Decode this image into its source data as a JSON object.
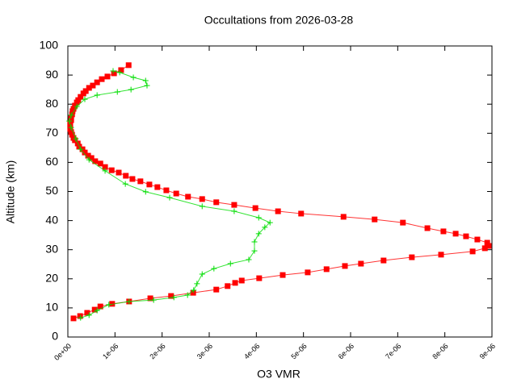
{
  "chart_data": {
    "type": "line",
    "title": "Occultations from 2026-03-28",
    "x_label": "O3 VMR",
    "y_label": "Altitude (km)",
    "xlim": [
      0,
      9e-06
    ],
    "ylim": [
      0,
      100
    ],
    "xticks": [
      {
        "value": 0,
        "label": "0e+00"
      },
      {
        "value": 1e-06,
        "label": "1e-06"
      },
      {
        "value": 2e-06,
        "label": "2e-06"
      },
      {
        "value": 3e-06,
        "label": "3e-06"
      },
      {
        "value": 4e-06,
        "label": "4e-06"
      },
      {
        "value": 5e-06,
        "label": "5e-06"
      },
      {
        "value": 6e-06,
        "label": "6e-06"
      },
      {
        "value": 7e-06,
        "label": "7e-06"
      },
      {
        "value": 8e-06,
        "label": "8e-06"
      },
      {
        "value": 9e-06,
        "label": "9e-06"
      }
    ],
    "yticks": [
      0,
      10,
      20,
      30,
      40,
      50,
      60,
      70,
      80,
      90,
      100
    ],
    "grid": false,
    "series": [
      {
        "color": "#ff0000",
        "marker": "square",
        "x": [
          1.2e-07,
          2.6e-07,
          4.1e-07,
          5.7e-07,
          6.9e-07,
          9.4e-07,
          1.3e-06,
          1.75e-06,
          2.19e-06,
          2.66e-06,
          3.15e-06,
          3.39e-06,
          3.55e-06,
          3.69e-06,
          4.06e-06,
          4.56e-06,
          5.09e-06,
          5.49e-06,
          5.88e-06,
          6.22e-06,
          6.7e-06,
          7.3e-06,
          7.92e-06,
          8.59e-06,
          8.85e-06,
          8.93e-06,
          8.9e-06,
          8.69e-06,
          8.45e-06,
          8.23e-06,
          7.97e-06,
          7.63e-06,
          7.11e-06,
          6.51e-06,
          5.85e-06,
          4.95e-06,
          4.46e-06,
          3.98e-06,
          3.53e-06,
          3.15e-06,
          2.85e-06,
          2.55e-06,
          2.3e-06,
          2.09e-06,
          1.9e-06,
          1.73e-06,
          1.54e-06,
          1.37e-06,
          1.23e-06,
          1.08e-06,
          9.3e-07,
          7.9e-07,
          6.9e-07,
          5.8e-07,
          5e-07,
          4.3e-07,
          3.6e-07,
          3.1e-07,
          2.4e-07,
          2.1e-07,
          1.5e-07,
          1.2e-07,
          9e-08,
          7e-08,
          5e-08,
          5e-08,
          5e-08,
          7e-08,
          7e-08,
          9e-08,
          1e-07,
          1.2e-07,
          1.5e-07,
          1.9e-07,
          2.2e-07,
          2.7e-07,
          3.3e-07,
          3.8e-07,
          4.5e-07,
          5.3e-07,
          6.2e-07,
          7.2e-07,
          8.4e-07,
          9.8e-07,
          1.13e-06,
          1.29e-06
        ],
        "values": [
          6.4,
          7.2,
          8.3,
          9.4,
          10.5,
          11.4,
          12.2,
          13.3,
          14.1,
          15.2,
          16.3,
          17.5,
          18.6,
          19.4,
          20.2,
          21.3,
          22.2,
          23.3,
          24.4,
          25.2,
          26.3,
          27.4,
          28.3,
          29.4,
          30.5,
          31.3,
          32.4,
          33.5,
          34.6,
          35.5,
          36.3,
          37.4,
          39.3,
          40.4,
          41.3,
          42.4,
          43.2,
          44.3,
          45.4,
          46.3,
          47.4,
          48.2,
          49.3,
          50.4,
          51.5,
          52.4,
          53.5,
          54.3,
          55.4,
          56.5,
          57.3,
          58.4,
          59.6,
          60.4,
          61.5,
          62.3,
          63.4,
          64.5,
          65.4,
          66.5,
          67.6,
          68.4,
          69.5,
          70.4,
          71.5,
          72.6,
          73.4,
          74.5,
          75.3,
          76.5,
          77.6,
          78.4,
          79.5,
          80.6,
          81.4,
          82.5,
          83.7,
          84.5,
          85.6,
          86.4,
          87.5,
          88.6,
          89.5,
          90.6,
          91.7,
          93.4
        ]
      },
      {
        "color": "#00dd00",
        "marker": "plus",
        "x": [
          2.7e-07,
          4.5e-07,
          6.2e-07,
          8.7e-07,
          1.3e-06,
          1.82e-06,
          2.25e-06,
          2.54e-06,
          2.67e-06,
          2.74e-06,
          2.85e-06,
          3.1e-06,
          3.45e-06,
          3.84e-06,
          3.96e-06,
          3.96e-06,
          4.05e-06,
          4.18e-06,
          4.29e-06,
          4.05e-06,
          3.53e-06,
          2.85e-06,
          2.16e-06,
          1.65e-06,
          1.22e-06,
          7.9e-07,
          4.5e-07,
          2.7e-07,
          1.7e-07,
          7e-08,
          3e-08,
          7e-08,
          1.9e-07,
          3.6e-07,
          6.2e-07,
          1.05e-06,
          1.34e-06,
          1.68e-06,
          1.65e-06,
          1.39e-06,
          1.1e-06,
          9.6e-07
        ],
        "values": [
          6.6,
          7.5,
          9.1,
          11.1,
          12.2,
          12.7,
          13.6,
          14.4,
          16.1,
          18.3,
          21.6,
          23.5,
          25.2,
          26.6,
          29.6,
          32.7,
          35.5,
          37.7,
          39.3,
          41.0,
          43.2,
          44.9,
          47.9,
          49.9,
          52.6,
          57.1,
          60.9,
          64.5,
          68.1,
          72.0,
          74.2,
          76.2,
          79.2,
          81.7,
          83.1,
          84.2,
          85.0,
          86.4,
          88.1,
          89.2,
          90.9,
          91.4
        ]
      }
    ]
  }
}
